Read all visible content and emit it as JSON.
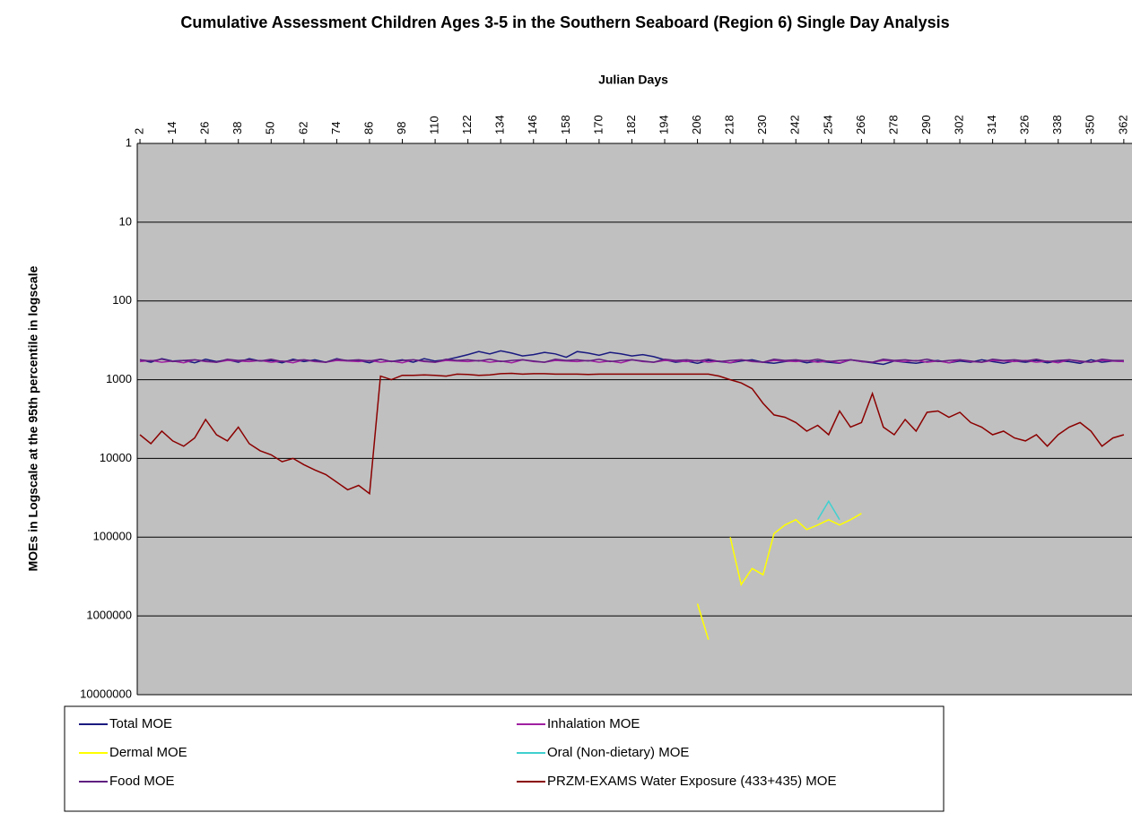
{
  "chart_data": {
    "type": "line",
    "title": "Cumulative Assessment Children Ages 3-5 in the Southern Seaboard (Region 6) Single Day Analysis",
    "x_label": "Julian Days",
    "y_label": "MOEs in Logscale at the 95th percentile in logscale",
    "log_scale": true,
    "y_inverted": true,
    "grid": true,
    "x_axis_position": "top",
    "legend_position": "bottom",
    "plot_background": "#c0c0c0",
    "xlim": [
      1,
      365
    ],
    "xticks": [
      2,
      14,
      26,
      38,
      50,
      62,
      74,
      86,
      98,
      110,
      122,
      134,
      146,
      158,
      170,
      182,
      194,
      206,
      218,
      230,
      242,
      254,
      266,
      278,
      290,
      302,
      314,
      326,
      338,
      350,
      362
    ],
    "ylim": [
      1,
      10000000
    ],
    "yticks": [
      1,
      10,
      100,
      1000,
      10000,
      100000,
      1000000,
      10000000
    ],
    "x": [
      2,
      6,
      10,
      14,
      18,
      22,
      26,
      30,
      34,
      38,
      42,
      46,
      50,
      54,
      58,
      62,
      66,
      70,
      74,
      78,
      82,
      86,
      90,
      94,
      98,
      102,
      106,
      110,
      114,
      118,
      122,
      126,
      130,
      134,
      138,
      142,
      146,
      150,
      154,
      158,
      162,
      166,
      170,
      174,
      178,
      182,
      186,
      190,
      194,
      198,
      202,
      206,
      210,
      214,
      218,
      222,
      226,
      230,
      234,
      238,
      242,
      246,
      250,
      254,
      258,
      262,
      266,
      270,
      274,
      278,
      282,
      286,
      290,
      294,
      298,
      302,
      306,
      310,
      314,
      318,
      322,
      326,
      330,
      334,
      338,
      342,
      346,
      350,
      354,
      358,
      362
    ],
    "series": [
      {
        "name": "Total MOE",
        "color": "#1a1a80",
        "values": [
          560,
          600,
          540,
          580,
          570,
          610,
          550,
          590,
          560,
          600,
          540,
          580,
          570,
          610,
          550,
          590,
          560,
          600,
          540,
          580,
          570,
          610,
          550,
          590,
          560,
          600,
          540,
          580,
          560,
          520,
          480,
          440,
          470,
          430,
          460,
          500,
          480,
          450,
          470,
          520,
          440,
          460,
          490,
          450,
          470,
          500,
          480,
          510,
          560,
          600,
          580,
          620,
          570,
          590,
          610,
          580,
          560,
          600,
          620,
          590,
          570,
          610,
          580,
          600,
          620,
          560,
          590,
          610,
          640,
          580,
          600,
          620,
          590,
          570,
          610,
          580,
          600,
          560,
          590,
          620,
          580,
          600,
          570,
          610,
          580,
          590,
          620,
          560,
          600,
          580,
          590
        ]
      },
      {
        "name": "Inhalation MOE",
        "color": "#a020a0",
        "values": [
          590,
          570,
          600,
          580,
          610,
          560,
          590,
          600,
          570,
          580,
          590,
          570,
          600,
          580,
          610,
          560,
          590,
          600,
          570,
          580,
          590,
          570,
          600,
          580,
          610,
          560,
          590,
          600,
          570,
          580,
          590,
          570,
          600,
          580,
          610,
          560,
          590,
          600,
          570,
          580,
          590,
          570,
          600,
          580,
          610,
          560,
          590,
          600,
          570,
          580,
          590,
          570,
          600,
          580,
          610,
          560,
          590,
          600,
          570,
          580,
          590,
          570,
          600,
          580,
          610,
          560,
          590,
          600,
          570,
          580,
          590,
          570,
          600,
          580,
          610,
          560,
          590,
          600,
          570,
          580,
          590,
          570,
          600,
          580,
          610,
          560,
          590,
          600,
          570,
          580,
          590
        ]
      },
      {
        "name": "Dermal MOE",
        "color": "#ffff00",
        "values": [
          null,
          null,
          null,
          null,
          null,
          null,
          null,
          null,
          null,
          null,
          null,
          null,
          null,
          null,
          null,
          null,
          null,
          null,
          null,
          null,
          null,
          null,
          null,
          null,
          null,
          null,
          null,
          null,
          null,
          null,
          null,
          null,
          null,
          null,
          null,
          null,
          null,
          null,
          null,
          null,
          null,
          null,
          null,
          null,
          null,
          null,
          null,
          null,
          null,
          null,
          null,
          700000,
          2000000,
          null,
          100000,
          400000,
          250000,
          300000,
          90000,
          70000,
          60000,
          80000,
          70000,
          60000,
          70000,
          60000,
          50000,
          null,
          null,
          null,
          null,
          null,
          null,
          null,
          null,
          null,
          null,
          null,
          null,
          null,
          null,
          null,
          null,
          null,
          null,
          null,
          null,
          null,
          null,
          null,
          null
        ]
      },
      {
        "name": "Oral (Non-dietary) MOE",
        "color": "#40d0d0",
        "values": [
          null,
          null,
          null,
          null,
          null,
          null,
          null,
          null,
          null,
          null,
          null,
          null,
          null,
          null,
          null,
          null,
          null,
          null,
          null,
          null,
          null,
          null,
          null,
          null,
          null,
          null,
          null,
          null,
          null,
          null,
          null,
          null,
          null,
          null,
          null,
          null,
          null,
          null,
          null,
          null,
          null,
          null,
          null,
          null,
          null,
          null,
          null,
          null,
          null,
          null,
          null,
          null,
          null,
          null,
          null,
          null,
          null,
          null,
          null,
          null,
          null,
          null,
          60000,
          35000,
          60000,
          null,
          null,
          null,
          null,
          null,
          null,
          null,
          null,
          null,
          null,
          null,
          null,
          null,
          null,
          null,
          null,
          null,
          null,
          null,
          null,
          null,
          null,
          null,
          null,
          null,
          null
        ]
      },
      {
        "name": "Food MOE",
        "color": "#602080",
        "values": [
          560,
          580,
          550,
          590,
          570,
          560,
          580,
          600,
          550,
          570,
          560,
          580,
          550,
          590,
          570,
          560,
          580,
          600,
          550,
          570,
          560,
          580,
          550,
          590,
          570,
          560,
          580,
          600,
          550,
          570,
          560,
          580,
          550,
          590,
          570,
          560,
          580,
          600,
          550,
          570,
          560,
          580,
          550,
          590,
          570,
          560,
          580,
          600,
          550,
          570,
          560,
          580,
          550,
          590,
          570,
          560,
          580,
          600,
          550,
          570,
          560,
          580,
          550,
          590,
          570,
          560,
          580,
          600,
          550,
          570,
          560,
          580,
          550,
          590,
          570,
          560,
          580,
          600,
          550,
          570,
          560,
          580,
          550,
          590,
          570,
          560,
          580,
          600,
          550,
          570,
          570
        ]
      },
      {
        "name": "PRZM-EXAMS Water Exposure (433+435) MOE",
        "color": "#8b0000",
        "values": [
          5000,
          6500,
          4500,
          6000,
          7000,
          5500,
          3200,
          5000,
          6000,
          4000,
          6500,
          8000,
          9000,
          11000,
          10000,
          12000,
          14000,
          16000,
          20000,
          25000,
          22000,
          28000,
          900,
          1000,
          880,
          880,
          870,
          880,
          900,
          850,
          860,
          880,
          870,
          840,
          830,
          850,
          840,
          840,
          850,
          850,
          850,
          860,
          850,
          850,
          850,
          850,
          850,
          850,
          850,
          850,
          850,
          850,
          850,
          900,
          1000,
          1100,
          1300,
          2000,
          2800,
          3000,
          3500,
          4500,
          3800,
          5000,
          2500,
          4000,
          3500,
          1500,
          4000,
          5000,
          3200,
          4500,
          2600,
          2500,
          3000,
          2600,
          3500,
          4000,
          5000,
          4500,
          5500,
          6000,
          5000,
          7000,
          5000,
          4000,
          3500,
          4500,
          7000,
          5500,
          5000
        ]
      }
    ]
  }
}
